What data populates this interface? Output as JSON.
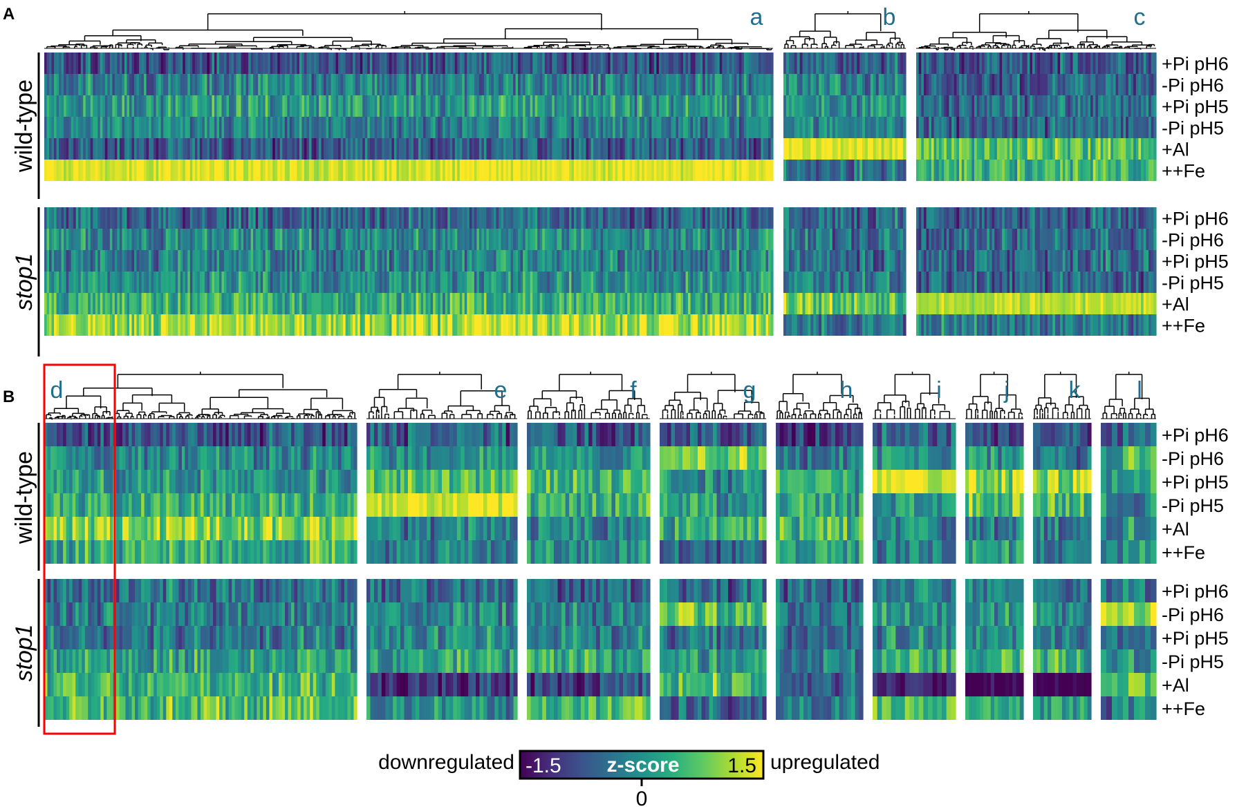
{
  "chart_data": {
    "type": "heatmap",
    "colormap": "viridis",
    "colorbar": {
      "title": "z-score",
      "min_label": "-1.5",
      "max_label": "1.5",
      "zero_label": "0",
      "left_label": "downregulated",
      "right_label": "upregulated",
      "range": [
        -1.5,
        1.5
      ]
    },
    "conditions": [
      "+Pi pH6",
      "-Pi pH6",
      "+Pi pH5",
      "-Pi pH5",
      "+Al",
      "++Fe"
    ],
    "genotypes": [
      "wild-type",
      "stop1"
    ],
    "panels": [
      {
        "label": "A",
        "clusters": [
          {
            "name": "a",
            "approx_genes": 300,
            "profile": {
              "wild-type": [
                -0.7,
                -0.2,
                0.1,
                -0.2,
                -0.6,
                1.4
              ],
              "stop1": [
                -0.5,
                -0.1,
                -0.2,
                0.0,
                0.4,
                1.1
              ]
            }
          },
          {
            "name": "b",
            "approx_genes": 45,
            "profile": {
              "wild-type": [
                -0.5,
                -0.1,
                0.0,
                -0.1,
                1.4,
                -0.3
              ],
              "stop1": [
                -0.4,
                -0.3,
                -0.4,
                -0.2,
                0.8,
                -0.3
              ]
            }
          },
          {
            "name": "c",
            "approx_genes": 95,
            "profile": {
              "wild-type": [
                -0.6,
                -0.5,
                -0.4,
                -0.5,
                0.7,
                0.5
              ],
              "stop1": [
                -0.5,
                -0.4,
                -0.4,
                -0.5,
                1.2,
                -0.2
              ]
            }
          }
        ]
      },
      {
        "label": "B",
        "clusters": [
          {
            "name": "d",
            "approx_genes": 100,
            "profile": {
              "wild-type": [
                -0.7,
                -0.1,
                0.1,
                0.4,
                1.0,
                0.4
              ],
              "stop1": [
                -0.3,
                -0.2,
                -0.2,
                0.2,
                0.5,
                0.6
              ]
            }
          },
          {
            "name": "e",
            "approx_genes": 40,
            "profile": {
              "wild-type": [
                -0.6,
                0.0,
                0.5,
                1.3,
                -0.2,
                -0.2
              ],
              "stop1": [
                -0.5,
                -0.1,
                0.0,
                0.2,
                -1.0,
                -0.1
              ]
            }
          },
          {
            "name": "f",
            "approx_genes": 32,
            "profile": {
              "wild-type": [
                -0.7,
                0.0,
                0.5,
                0.5,
                -0.3,
                0.0
              ],
              "stop1": [
                -0.5,
                -0.2,
                -0.1,
                0.3,
                -0.8,
                0.6
              ]
            }
          },
          {
            "name": "g",
            "approx_genes": 28,
            "profile": {
              "wild-type": [
                -0.6,
                0.9,
                0.0,
                0.0,
                0.3,
                -0.5
              ],
              "stop1": [
                -0.5,
                0.6,
                -0.3,
                0.0,
                0.5,
                -0.5
              ]
            }
          },
          {
            "name": "h",
            "approx_genes": 22,
            "profile": {
              "wild-type": [
                -1.0,
                -0.2,
                0.3,
                0.3,
                0.6,
                0.3
              ],
              "stop1": [
                -0.5,
                -0.3,
                -0.4,
                -0.1,
                -0.5,
                -0.2
              ]
            }
          },
          {
            "name": "i",
            "approx_genes": 18,
            "profile": {
              "wild-type": [
                -0.5,
                0.0,
                1.3,
                0.0,
                -0.3,
                -0.2
              ],
              "stop1": [
                -0.3,
                0.0,
                -0.1,
                0.3,
                -1.2,
                0.5
              ]
            }
          },
          {
            "name": "j",
            "approx_genes": 16,
            "profile": {
              "wild-type": [
                -0.8,
                0.0,
                1.0,
                0.6,
                -0.3,
                0.1
              ],
              "stop1": [
                -0.3,
                0.0,
                -0.2,
                0.4,
                -1.5,
                0.2
              ]
            }
          },
          {
            "name": "k",
            "approx_genes": 16,
            "profile": {
              "wild-type": [
                -0.8,
                -0.2,
                1.1,
                0.6,
                -0.2,
                -0.2
              ],
              "stop1": [
                -0.3,
                0.0,
                -0.3,
                0.5,
                -1.5,
                0.1
              ]
            }
          },
          {
            "name": "l",
            "approx_genes": 10,
            "profile": {
              "wild-type": [
                -0.7,
                0.3,
                0.0,
                -0.2,
                0.0,
                0.0
              ],
              "stop1": [
                -0.4,
                0.9,
                -0.4,
                -0.2,
                0.6,
                -0.3
              ]
            }
          }
        ]
      }
    ],
    "highlight": {
      "cluster": "d",
      "color": "#ff0000",
      "scope": "first 22% of cluster d columns"
    }
  }
}
